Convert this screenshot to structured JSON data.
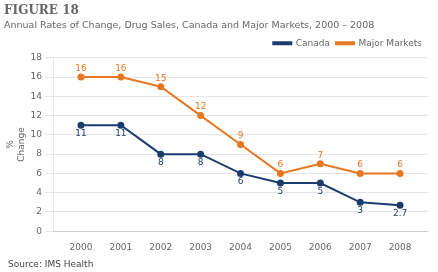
{
  "chart_data": {
    "type": "line",
    "title": "FIGURE 18",
    "subtitle": "Annual Rates of Change, Drug Sales, Canada and Major Markets, 2000 – 2008",
    "ylabel": [
      "%",
      "Change"
    ],
    "source": "Source: IMS Health",
    "x": [
      2000,
      2001,
      2002,
      2003,
      2004,
      2005,
      2006,
      2007,
      2008
    ],
    "series": [
      {
        "name": "Canada",
        "color": "#1a3d6e",
        "values": [
          11,
          11,
          8,
          8,
          6,
          5,
          5,
          3,
          2.7
        ]
      },
      {
        "name": "Major Markets",
        "color": "#e87722",
        "values": [
          16,
          16,
          15,
          12,
          9,
          6,
          7,
          6,
          6
        ]
      }
    ],
    "xlim": [
      1999.3,
      2008.7
    ],
    "xticks": [
      2000,
      2001,
      2002,
      2003,
      2004,
      2005,
      2006,
      2007,
      2008
    ],
    "ylim": [
      0,
      18
    ],
    "yticks": [
      0,
      2,
      4,
      6,
      8,
      10,
      12,
      14,
      16,
      18
    ],
    "grid": true,
    "legend": "upper right",
    "data_labels": true
  }
}
